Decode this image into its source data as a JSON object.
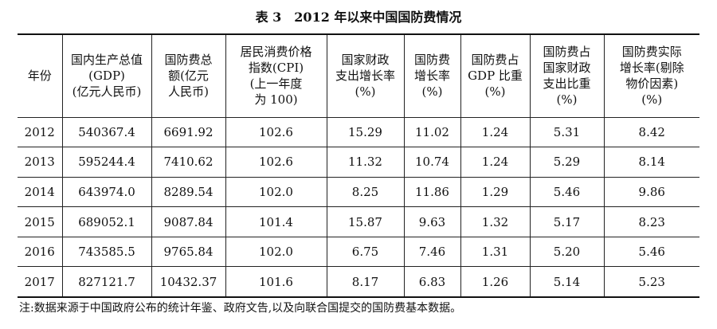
{
  "title": "表 3　2012 年以来中国国防费情况",
  "table": {
    "header": [
      [
        "年份"
      ],
      [
        "国内生产总值",
        "(GDP)",
        "(亿元人民币)"
      ],
      [
        "国防费总",
        "额(亿元",
        "人民币)"
      ],
      [
        "居民消费价格",
        "指数(CPI)",
        "(上一年度",
        "为 100)"
      ],
      [
        "国家财政",
        "支出增长率",
        "(%)"
      ],
      [
        "国防费",
        "增长率",
        "(%)"
      ],
      [
        "国防费占",
        "GDP 比重",
        "(%)"
      ],
      [
        "国防费占",
        "国家财政",
        "支出比重",
        "(%)"
      ],
      [
        "国防费实际",
        "增长率(剔除",
        "物价因素)",
        "(%)"
      ]
    ],
    "rows": [
      [
        "2012",
        "540367.4",
        "6691.92",
        "102.6",
        "15.29",
        "11.02",
        "1.24",
        "5.31",
        "8.42"
      ],
      [
        "2013",
        "595244.4",
        "7410.62",
        "102.6",
        "11.32",
        "10.74",
        "1.24",
        "5.29",
        "8.14"
      ],
      [
        "2014",
        "643974.0",
        "8289.54",
        "102.0",
        "8.25",
        "11.86",
        "1.29",
        "5.46",
        "9.86"
      ],
      [
        "2015",
        "689052.1",
        "9087.84",
        "101.4",
        "15.87",
        "9.63",
        "1.32",
        "5.17",
        "8.23"
      ],
      [
        "2016",
        "743585.5",
        "9765.84",
        "102.0",
        "6.75",
        "7.46",
        "1.31",
        "5.20",
        "5.46"
      ],
      [
        "2017",
        "827121.7",
        "10432.37",
        "101.6",
        "8.17",
        "6.83",
        "1.26",
        "5.14",
        "5.23"
      ]
    ]
  },
  "footnote": "注:数据来源于中国政府公布的统计年鉴、政府文告,以及向联合国提交的国防费基本数据。"
}
